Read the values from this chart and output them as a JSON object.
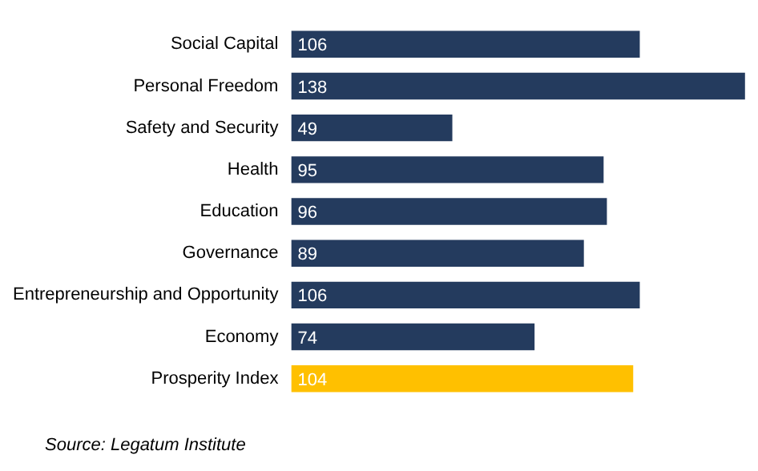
{
  "chart_data": {
    "type": "bar",
    "orientation": "horizontal",
    "categories": [
      "Social Capital",
      "Personal Freedom",
      "Safety and Security",
      "Health",
      "Education",
      "Governance",
      "Entrepreneurship and Opportunity",
      "Economy",
      "Prosperity Index"
    ],
    "values": [
      106,
      138,
      49,
      95,
      96,
      89,
      106,
      74,
      104
    ],
    "colors": [
      "#243b5e",
      "#243b5e",
      "#243b5e",
      "#243b5e",
      "#243b5e",
      "#243b5e",
      "#243b5e",
      "#243b5e",
      "#ffc000"
    ],
    "data_labels": true,
    "tick_labels": "y",
    "annotations": [
      "Source: Legatum Institute"
    ]
  }
}
